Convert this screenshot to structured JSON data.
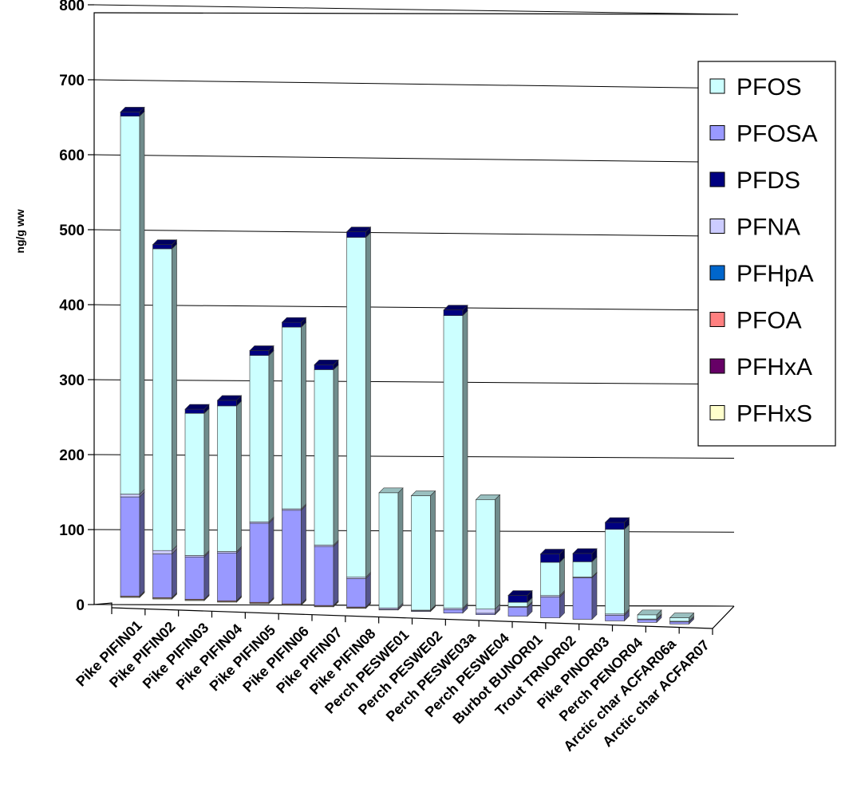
{
  "chart_data": {
    "type": "bar",
    "stacked": true,
    "view": "3d",
    "title": "",
    "xlabel": "",
    "ylabel": "ng/g ww",
    "ylim": [
      0,
      800
    ],
    "yticks": [
      0,
      100,
      200,
      300,
      400,
      500,
      600,
      700,
      800
    ],
    "grid": true,
    "legend_position": "right",
    "categories": [
      "Pike PIFIN01",
      "Pike PIFIN02",
      "Pike PIFIN03",
      "Pike PIFIN04",
      "Pike PIFIN05",
      "Pike PIFIN06",
      "Pike PIFIN07",
      "Pike PIFIN08",
      "Perch PESWE01",
      "Perch PESWE02",
      "Perch PESWE03a",
      "Perch PESWE04",
      "Burbot BUNOR01",
      "Trout TRNOR02",
      "Pike PINOR03",
      "Perch PENOR04",
      "Arctic char ACFAR06a",
      "Arctic char ACFAR07"
    ],
    "series": [
      {
        "name": "PFHxS",
        "color": "#ffffcc",
        "values": [
          1,
          1,
          1,
          1,
          1,
          1,
          1,
          1,
          0,
          0,
          0,
          0,
          0,
          0,
          0,
          0,
          0,
          0
        ]
      },
      {
        "name": "PFHxA",
        "color": "#660066",
        "values": [
          0,
          0,
          0,
          0,
          0,
          0,
          0,
          0,
          0,
          0,
          0,
          0,
          0,
          0,
          0,
          0,
          0,
          0
        ]
      },
      {
        "name": "PFOA",
        "color": "#ff8080",
        "values": [
          1,
          1,
          1,
          1,
          1,
          1,
          1,
          1,
          0,
          0,
          0,
          0,
          0,
          0,
          0,
          0,
          0,
          0
        ]
      },
      {
        "name": "PFHpA",
        "color": "#0066cc",
        "values": [
          0,
          0,
          0,
          0,
          0,
          0,
          0,
          0,
          0,
          0,
          0,
          0,
          0,
          0,
          0,
          0,
          0,
          0
        ]
      },
      {
        "name": "PFOSA",
        "color": "#9999ff",
        "values": [
          143,
          63,
          61,
          69,
          114,
          135,
          85,
          41,
          1,
          1,
          5,
          2,
          13,
          30,
          60,
          8,
          4,
          3
        ]
      },
      {
        "name": "PFNA",
        "color": "#ccccff",
        "values": [
          4,
          5,
          2,
          2,
          2,
          2,
          2,
          2,
          2,
          1,
          2,
          6,
          1,
          2,
          1,
          2,
          1,
          1
        ]
      },
      {
        "name": "PFOS",
        "color": "#ccffff",
        "values": [
          545,
          435,
          205,
          210,
          240,
          262,
          253,
          490,
          166,
          165,
          422,
          158,
          6,
          48,
          22,
          122,
          6,
          5
        ]
      },
      {
        "name": "PFDS",
        "color": "#000080",
        "values": [
          6,
          6,
          6,
          8,
          7,
          7,
          7,
          8,
          0,
          0,
          8,
          0,
          10,
          12,
          12,
          10,
          0,
          0
        ]
      }
    ],
    "legend_order": [
      "PFOS",
      "PFOSA",
      "PFDS",
      "PFNA",
      "PFHpA",
      "PFOA",
      "PFHxA",
      "PFHxS"
    ]
  }
}
